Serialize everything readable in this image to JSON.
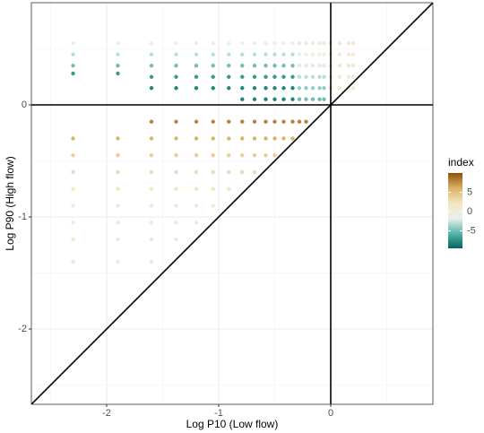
{
  "chart_data": {
    "type": "scatter",
    "x_label": "Log P10 (Low flow)",
    "y_label": "Log P90 (High flow)",
    "xlim": [
      -2.672,
      0.912
    ],
    "ylim": [
      -2.672,
      0.912
    ],
    "xticks": [
      -2,
      -1,
      0
    ],
    "yticks": [
      -2,
      -1,
      0
    ],
    "xminor": [
      -2.5,
      -1.5,
      -0.5,
      0.5
    ],
    "yminor": [
      -2.5,
      -1.5,
      -0.5,
      0.5
    ],
    "grid": true,
    "hline": 0,
    "vline": 0,
    "abline": {
      "slope": 1,
      "intercept": 0
    },
    "color_scale": {
      "title": "index",
      "lim": [
        -9.5,
        10
      ],
      "ticks": [
        5,
        0,
        -5
      ],
      "colors": [
        "#01665e",
        "#5ab4ac",
        "#e9f1ec",
        "#f3e5c2",
        "#d8b365",
        "#8c510a"
      ]
    },
    "points": [
      [
        -2.3,
        0.55,
        -1
      ],
      [
        -2.3,
        0.45,
        -3
      ],
      [
        -2.3,
        0.35,
        -5
      ],
      [
        -2.3,
        0.28,
        -7
      ],
      [
        -1.9,
        0.55,
        -1
      ],
      [
        -1.9,
        0.45,
        -3
      ],
      [
        -1.9,
        0.35,
        -5
      ],
      [
        -1.9,
        0.28,
        -7
      ],
      [
        -1.6,
        0.55,
        -1
      ],
      [
        -1.6,
        0.45,
        -3
      ],
      [
        -1.6,
        0.35,
        -5
      ],
      [
        -1.6,
        0.25,
        -7
      ],
      [
        -1.6,
        0.15,
        -8
      ],
      [
        -1.38,
        0.55,
        -1
      ],
      [
        -1.38,
        0.45,
        -3
      ],
      [
        -1.38,
        0.35,
        -5
      ],
      [
        -1.38,
        0.25,
        -7
      ],
      [
        -1.38,
        0.15,
        -8
      ],
      [
        -1.2,
        0.55,
        -1
      ],
      [
        -1.2,
        0.45,
        -3
      ],
      [
        -1.2,
        0.35,
        -5
      ],
      [
        -1.2,
        0.25,
        -7
      ],
      [
        -1.2,
        0.15,
        -8
      ],
      [
        -1.05,
        0.55,
        -1
      ],
      [
        -1.05,
        0.45,
        -3
      ],
      [
        -1.05,
        0.35,
        -5
      ],
      [
        -1.05,
        0.25,
        -7
      ],
      [
        -1.05,
        0.15,
        -8
      ],
      [
        -0.91,
        0.55,
        -1
      ],
      [
        -0.91,
        0.45,
        -3
      ],
      [
        -0.91,
        0.35,
        -5
      ],
      [
        -0.91,
        0.25,
        -7
      ],
      [
        -0.91,
        0.15,
        -8
      ],
      [
        -0.79,
        0.55,
        -1
      ],
      [
        -0.79,
        0.45,
        -3
      ],
      [
        -0.79,
        0.35,
        -5
      ],
      [
        -0.79,
        0.25,
        -7
      ],
      [
        -0.79,
        0.15,
        -8
      ],
      [
        -0.79,
        0.05,
        -8
      ],
      [
        -0.68,
        0.55,
        -1
      ],
      [
        -0.68,
        0.45,
        -3
      ],
      [
        -0.68,
        0.35,
        -5
      ],
      [
        -0.68,
        0.25,
        -7
      ],
      [
        -0.68,
        0.15,
        -8
      ],
      [
        -0.68,
        0.05,
        -8
      ],
      [
        -0.58,
        0.55,
        -1
      ],
      [
        -0.58,
        0.45,
        -3
      ],
      [
        -0.58,
        0.35,
        -5
      ],
      [
        -0.58,
        0.25,
        -7
      ],
      [
        -0.58,
        0.15,
        -8
      ],
      [
        -0.58,
        0.05,
        -8
      ],
      [
        -0.5,
        0.55,
        -1
      ],
      [
        -0.5,
        0.45,
        -3
      ],
      [
        -0.5,
        0.35,
        -5
      ],
      [
        -0.5,
        0.25,
        -7
      ],
      [
        -0.5,
        0.15,
        -8
      ],
      [
        -0.5,
        0.05,
        -8
      ],
      [
        -0.42,
        0.55,
        -1
      ],
      [
        -0.42,
        0.45,
        -3
      ],
      [
        -0.42,
        0.35,
        -5
      ],
      [
        -0.42,
        0.25,
        -7
      ],
      [
        -0.42,
        0.15,
        -8
      ],
      [
        -0.42,
        0.05,
        -8
      ],
      [
        -0.34,
        0.55,
        -1
      ],
      [
        -0.34,
        0.45,
        -3
      ],
      [
        -0.34,
        0.35,
        -5
      ],
      [
        -0.34,
        0.25,
        -7
      ],
      [
        -0.34,
        0.15,
        -8
      ],
      [
        -0.34,
        0.05,
        -8
      ],
      [
        -0.28,
        0.55,
        0
      ],
      [
        -0.28,
        0.45,
        -1
      ],
      [
        -0.28,
        0.35,
        -2
      ],
      [
        -0.28,
        0.25,
        -3
      ],
      [
        -0.28,
        0.15,
        -4
      ],
      [
        -0.28,
        0.05,
        -5
      ],
      [
        -0.22,
        0.55,
        0
      ],
      [
        -0.22,
        0.45,
        -1
      ],
      [
        -0.22,
        0.35,
        -2
      ],
      [
        -0.22,
        0.25,
        -3
      ],
      [
        -0.22,
        0.15,
        -4
      ],
      [
        -0.22,
        0.05,
        -5
      ],
      [
        -0.16,
        0.55,
        0
      ],
      [
        -0.16,
        0.45,
        -1
      ],
      [
        -0.16,
        0.35,
        -2
      ],
      [
        -0.16,
        0.25,
        -3
      ],
      [
        -0.16,
        0.15,
        -4
      ],
      [
        -0.16,
        0.05,
        -5
      ],
      [
        -0.1,
        0.55,
        0
      ],
      [
        -0.1,
        0.45,
        -1
      ],
      [
        -0.1,
        0.35,
        -2
      ],
      [
        -0.1,
        0.25,
        -3
      ],
      [
        -0.1,
        0.15,
        -4
      ],
      [
        -0.1,
        0.05,
        -5
      ],
      [
        -0.06,
        0.55,
        0
      ],
      [
        -0.06,
        0.45,
        -1
      ],
      [
        -0.06,
        0.35,
        -2
      ],
      [
        -0.06,
        0.25,
        -3
      ],
      [
        -0.06,
        0.15,
        -4
      ],
      [
        -0.06,
        0.05,
        -5
      ],
      [
        0,
        0.55,
        1
      ],
      [
        0,
        0.45,
        1
      ],
      [
        0,
        0.35,
        1
      ],
      [
        0,
        0.25,
        1
      ],
      [
        0,
        0.15,
        1
      ],
      [
        0.08,
        0.55,
        1
      ],
      [
        0.08,
        0.45,
        1
      ],
      [
        0.08,
        0.35,
        1
      ],
      [
        0.08,
        0.25,
        1
      ],
      [
        0.08,
        0.15,
        1
      ],
      [
        0.16,
        0.55,
        1
      ],
      [
        0.16,
        0.45,
        1
      ],
      [
        0.16,
        0.35,
        1
      ],
      [
        0.16,
        0.25,
        1
      ],
      [
        0.16,
        0.15,
        1
      ],
      [
        0.2,
        0.55,
        1
      ],
      [
        0.2,
        0.45,
        1
      ],
      [
        0.2,
        0.35,
        1
      ],
      [
        0.2,
        0.25,
        1
      ],
      [
        0.2,
        0.15,
        1
      ],
      [
        -2.3,
        -0.3,
        6
      ],
      [
        -2.3,
        -0.45,
        4
      ],
      [
        -2.3,
        -0.6,
        3
      ],
      [
        -2.3,
        -0.75,
        2
      ],
      [
        -2.3,
        -0.9,
        1
      ],
      [
        -2.3,
        -1.05,
        1
      ],
      [
        -2.3,
        -1.2,
        1
      ],
      [
        -2.3,
        -1.4,
        0.5
      ],
      [
        -1.9,
        -0.3,
        6
      ],
      [
        -1.9,
        -0.45,
        4
      ],
      [
        -1.9,
        -0.6,
        3
      ],
      [
        -1.9,
        -0.75,
        2
      ],
      [
        -1.9,
        -0.9,
        1
      ],
      [
        -1.9,
        -1.05,
        1
      ],
      [
        -1.9,
        -1.2,
        1
      ],
      [
        -1.9,
        -1.4,
        0.5
      ],
      [
        -1.6,
        -0.15,
        8
      ],
      [
        -1.6,
        -0.3,
        6
      ],
      [
        -1.6,
        -0.45,
        4
      ],
      [
        -1.6,
        -0.6,
        3
      ],
      [
        -1.6,
        -0.75,
        2
      ],
      [
        -1.6,
        -0.9,
        1
      ],
      [
        -1.6,
        -1.05,
        1
      ],
      [
        -1.6,
        -1.2,
        1
      ],
      [
        -1.6,
        -1.4,
        0.5
      ],
      [
        -1.38,
        -0.15,
        8
      ],
      [
        -1.38,
        -0.3,
        6
      ],
      [
        -1.38,
        -0.45,
        4
      ],
      [
        -1.38,
        -0.6,
        3
      ],
      [
        -1.38,
        -0.75,
        2
      ],
      [
        -1.38,
        -0.9,
        1
      ],
      [
        -1.38,
        -1.05,
        1
      ],
      [
        -1.38,
        -1.2,
        1
      ],
      [
        -1.2,
        -0.15,
        8
      ],
      [
        -1.2,
        -0.3,
        6
      ],
      [
        -1.2,
        -0.45,
        4
      ],
      [
        -1.2,
        -0.6,
        3
      ],
      [
        -1.2,
        -0.75,
        2
      ],
      [
        -1.2,
        -0.9,
        1
      ],
      [
        -1.2,
        -1.05,
        1
      ],
      [
        -1.05,
        -0.15,
        8
      ],
      [
        -1.05,
        -0.3,
        6
      ],
      [
        -1.05,
        -0.45,
        4
      ],
      [
        -1.05,
        -0.6,
        3
      ],
      [
        -1.05,
        -0.75,
        2
      ],
      [
        -1.05,
        -0.9,
        1
      ],
      [
        -0.91,
        -0.15,
        8
      ],
      [
        -0.91,
        -0.3,
        6
      ],
      [
        -0.91,
        -0.45,
        4
      ],
      [
        -0.91,
        -0.6,
        3
      ],
      [
        -0.91,
        -0.75,
        2
      ],
      [
        -0.79,
        -0.15,
        8
      ],
      [
        -0.79,
        -0.3,
        6
      ],
      [
        -0.79,
        -0.45,
        4
      ],
      [
        -0.79,
        -0.6,
        3
      ],
      [
        -0.68,
        -0.15,
        8
      ],
      [
        -0.68,
        -0.3,
        6
      ],
      [
        -0.68,
        -0.45,
        4
      ],
      [
        -0.68,
        -0.6,
        3
      ],
      [
        -0.58,
        -0.15,
        8
      ],
      [
        -0.58,
        -0.3,
        6
      ],
      [
        -0.58,
        -0.45,
        4
      ],
      [
        -0.5,
        -0.15,
        8
      ],
      [
        -0.5,
        -0.3,
        6
      ],
      [
        -0.5,
        -0.45,
        4
      ],
      [
        -0.42,
        -0.15,
        8
      ],
      [
        -0.42,
        -0.3,
        6
      ],
      [
        -0.34,
        -0.15,
        8
      ],
      [
        -0.34,
        -0.3,
        6
      ],
      [
        -0.28,
        -0.15,
        8
      ],
      [
        -0.22,
        -0.15,
        8
      ]
    ]
  }
}
